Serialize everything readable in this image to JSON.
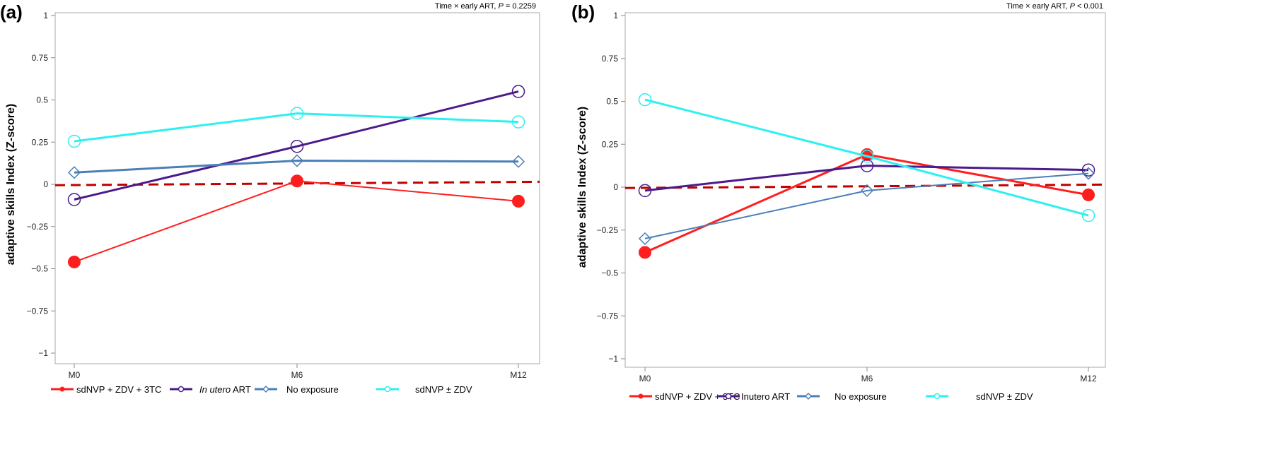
{
  "chart_data": [
    {
      "type": "line",
      "panel_label": "(a)",
      "annotation_prefix": "Time × early ART, ",
      "annotation_p": "P",
      "annotation_value": " = 0.2259",
      "ylabel": "adaptive skills Index (Z-score)",
      "xlabel": "",
      "categories": [
        "M0",
        "M6",
        "M12"
      ],
      "ylim": [
        -1,
        1
      ],
      "yticks": [
        "1",
        "0.75",
        "0.5",
        "0.25",
        "0",
        "−0.25",
        "−0.5",
        "−0.75",
        "−1"
      ],
      "ytick_values": [
        1,
        0.75,
        0.5,
        0.25,
        0,
        -0.25,
        -0.5,
        -0.75,
        -1
      ],
      "reference_line": {
        "from": -0.005,
        "to": 0.015,
        "color": "#c00000"
      },
      "series": [
        {
          "name": "sdNVP + ZDV + 3TC",
          "italic_prefix": "",
          "color": "#ff1e1e",
          "marker": "filled-circle",
          "width": 2,
          "values": [
            -0.46,
            0.02,
            -0.1
          ]
        },
        {
          "name": " ART",
          "italic_prefix": "In utero",
          "color": "#4b1a8c",
          "marker": "open-circle",
          "width": 3,
          "values": [
            -0.09,
            0.225,
            0.55
          ]
        },
        {
          "name": "No exposure",
          "italic_prefix": "",
          "color": "#4a7fb8",
          "marker": "open-diamond",
          "width": 3,
          "values": [
            0.07,
            0.14,
            0.135
          ]
        },
        {
          "name": "sdNVP ± ZDV",
          "italic_prefix": "",
          "color": "#2ef0f0",
          "marker": "open-circle",
          "width": 3,
          "values": [
            0.255,
            0.42,
            0.37
          ]
        }
      ]
    },
    {
      "type": "line",
      "panel_label": "(b)",
      "annotation_prefix": "Time × early ART, ",
      "annotation_p": "P",
      "annotation_value": " < 0.001",
      "ylabel": "adaptive skills Index (Z-score)",
      "xlabel": "",
      "categories": [
        "M0",
        "M6",
        "M12"
      ],
      "ylim": [
        -1,
        1
      ],
      "yticks": [
        "1",
        "0.75",
        "0.5",
        "0.25",
        "0",
        "−0.25",
        "−0.5",
        "−0.75",
        "−1"
      ],
      "ytick_values": [
        1,
        0.75,
        0.5,
        0.25,
        0,
        -0.25,
        -0.5,
        -0.75,
        -1
      ],
      "reference_line": {
        "from": -0.005,
        "to": 0.015,
        "color": "#c00000"
      },
      "series": [
        {
          "name": "sdNVP + ZDV + 3TC",
          "italic_prefix": "",
          "color": "#ff1e1e",
          "marker": "filled-circle",
          "width": 3,
          "values": [
            -0.38,
            0.19,
            -0.045
          ]
        },
        {
          "name": "Inutero ART",
          "italic_prefix": "",
          "color": "#4b1a8c",
          "marker": "open-circle",
          "width": 3,
          "values": [
            -0.02,
            0.125,
            0.1
          ]
        },
        {
          "name": "No exposure",
          "italic_prefix": "",
          "color": "#4a7fb8",
          "marker": "open-diamond",
          "width": 2,
          "values": [
            -0.3,
            -0.02,
            0.08
          ]
        },
        {
          "name": "sdNVP ± ZDV",
          "italic_prefix": "",
          "color": "#2ef0f0",
          "marker": "open-circle",
          "width": 3,
          "values": [
            0.51,
            0.18,
            -0.165
          ]
        }
      ]
    }
  ]
}
